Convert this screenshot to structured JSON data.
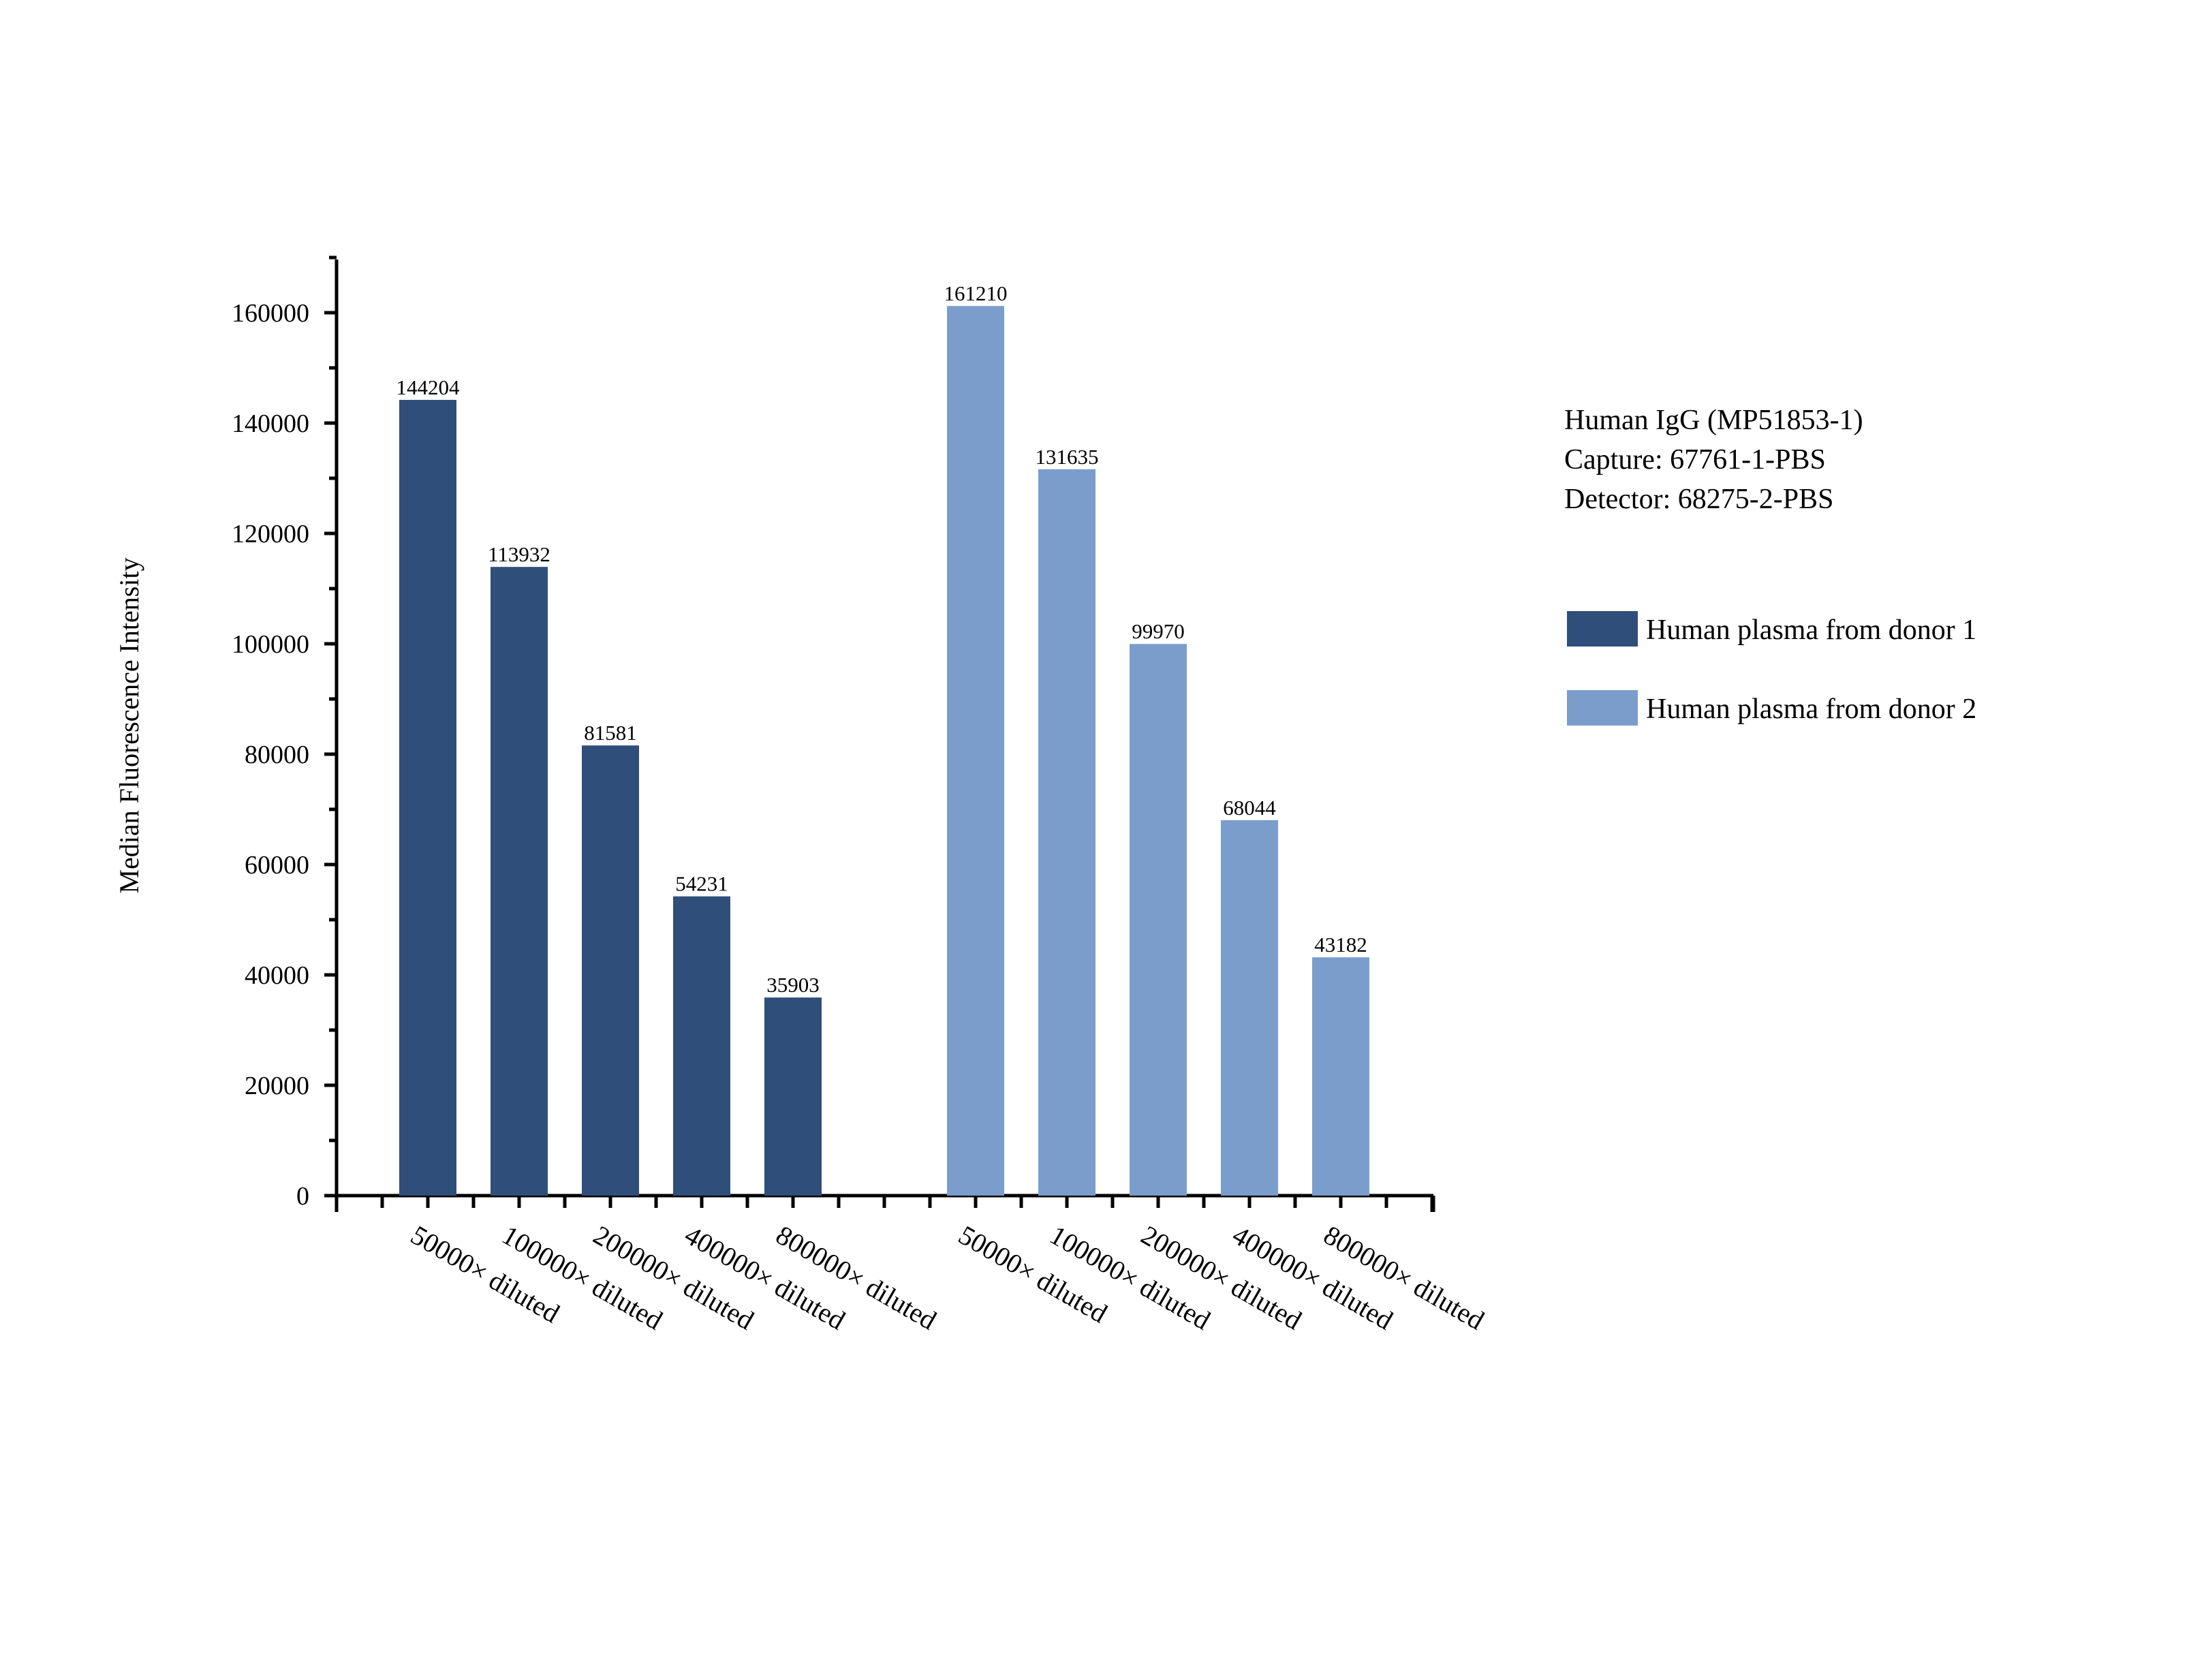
{
  "chart_data": {
    "type": "bar",
    "ylabel": "Median Fluorescence Intensity",
    "ylim": [
      0,
      170000
    ],
    "yticks": [
      0,
      20000,
      40000,
      60000,
      80000,
      100000,
      120000,
      140000,
      160000
    ],
    "categories": [
      "50000× diluted",
      "100000× diluted",
      "200000× diluted",
      "400000× diluted",
      "800000× diluted"
    ],
    "series": [
      {
        "name": "Human plasma from donor 1",
        "color": "#2f4f7a",
        "values": [
          144204,
          113932,
          81581,
          54231,
          35903
        ]
      },
      {
        "name": "Human plasma from donor 2",
        "color": "#7b9dcb",
        "values": [
          161210,
          131635,
          99970,
          68044,
          43182
        ]
      }
    ],
    "annotation_lines": [
      "Human IgG (MP51853-1)",
      "Capture: 67761-1-PBS",
      "Detector: 68275-2-PBS"
    ],
    "grid": false,
    "legend_position": "right"
  }
}
